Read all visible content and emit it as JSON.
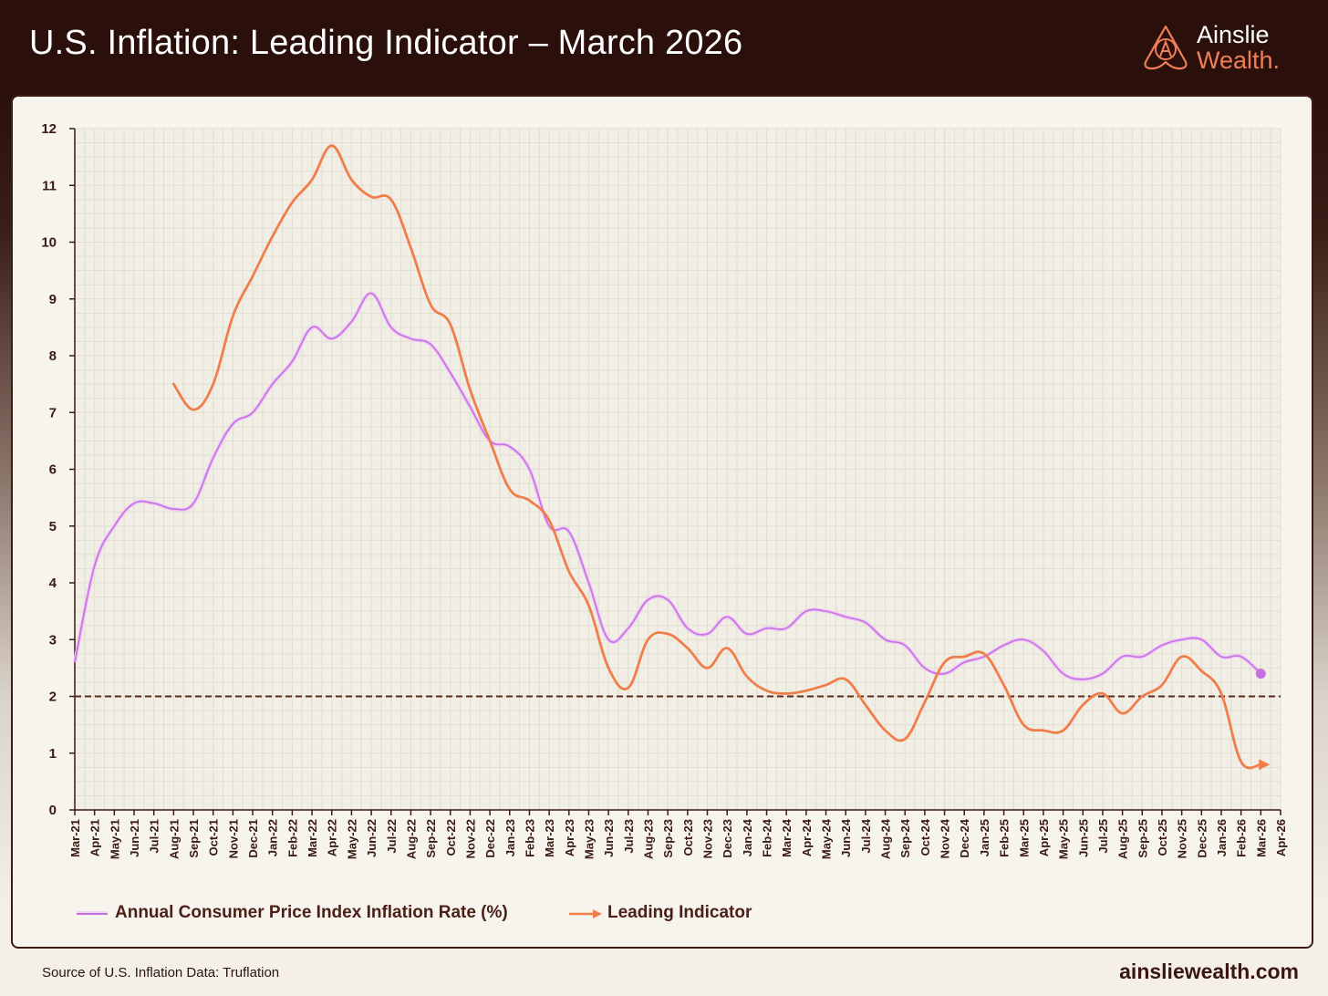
{
  "header": {
    "title": "U.S. Inflation: Leading Indicator – March 2026",
    "brand_name": "Ainslie",
    "brand_sub": "Wealth."
  },
  "footer": {
    "source": "Source of U.S. Inflation Data: Truflation",
    "url": "ainsliewealth.com"
  },
  "colors": {
    "cpi": "#c770e0",
    "leading": "#f07e4a",
    "target_line": "#5a2a1c",
    "grid": "#e2ddd2",
    "axis": "#3a1a12"
  },
  "chart_data": {
    "type": "line",
    "ylim": [
      0,
      12
    ],
    "yticks": [
      "0",
      "1",
      "2",
      "3",
      "4",
      "5",
      "6",
      "7",
      "8",
      "9",
      "10",
      "11",
      "12"
    ],
    "categories": [
      "Mar-21",
      "Apr-21",
      "May-21",
      "Jun-21",
      "Jul-21",
      "Aug-21",
      "Sep-21",
      "Oct-21",
      "Nov-21",
      "Dec-21",
      "Jan-22",
      "Feb-22",
      "Mar-22",
      "Apr-22",
      "May-22",
      "Jun-22",
      "Jul-22",
      "Aug-22",
      "Sep-22",
      "Oct-22",
      "Nov-22",
      "Dec-22",
      "Jan-23",
      "Feb-23",
      "Mar-23",
      "Apr-23",
      "May-23",
      "Jun-23",
      "Jul-23",
      "Aug-23",
      "Sep-23",
      "Oct-23",
      "Nov-23",
      "Dec-23",
      "Jan-24",
      "Feb-24",
      "Mar-24",
      "Apr-24",
      "May-24",
      "Jun-24",
      "Jul-24",
      "Aug-24",
      "Sep-24",
      "Oct-24",
      "Nov-24",
      "Dec-24",
      "Jan-25",
      "Feb-25",
      "Mar-25",
      "Apr-25",
      "May-25",
      "Jun-25",
      "Jul-25",
      "Aug-25",
      "Sep-25",
      "Oct-25",
      "Nov-25",
      "Dec-25",
      "Jan-26",
      "Feb-26",
      "Mar-26",
      "Apr-26"
    ],
    "reference_line": 2,
    "legend_placement": "bottom-left",
    "grid": true,
    "series": [
      {
        "name": "Annual Consumer Price Index Inflation Rate (%)",
        "values": [
          2.6,
          4.3,
          5.0,
          5.4,
          5.4,
          5.3,
          5.4,
          6.2,
          6.8,
          7.0,
          7.5,
          7.9,
          8.5,
          8.3,
          8.6,
          9.1,
          8.5,
          8.3,
          8.2,
          7.7,
          7.1,
          6.5,
          6.4,
          6.0,
          5.0,
          4.9,
          4.0,
          3.0,
          3.2,
          3.7,
          3.7,
          3.2,
          3.1,
          3.4,
          3.1,
          3.2,
          3.2,
          3.5,
          3.5,
          3.4,
          3.3,
          3.0,
          2.9,
          2.5,
          2.4,
          2.6,
          2.7,
          2.9,
          3.0,
          2.8,
          2.4,
          2.3,
          2.4,
          2.7,
          2.7,
          2.9,
          3.0,
          3.0,
          2.7,
          2.7,
          2.4,
          null
        ]
      },
      {
        "name": "Leading Indicator",
        "values": [
          null,
          null,
          null,
          null,
          null,
          7.5,
          7.05,
          7.5,
          8.7,
          9.4,
          10.1,
          10.7,
          11.1,
          11.7,
          11.1,
          10.8,
          10.75,
          9.9,
          8.9,
          8.55,
          7.4,
          6.5,
          5.65,
          5.45,
          5.1,
          4.2,
          3.6,
          2.5,
          2.15,
          3.0,
          3.1,
          2.85,
          2.5,
          2.85,
          2.35,
          2.1,
          2.05,
          2.1,
          2.2,
          2.3,
          1.85,
          1.4,
          1.25,
          1.9,
          2.6,
          2.7,
          2.75,
          2.2,
          1.5,
          1.4,
          1.4,
          1.85,
          2.05,
          1.7,
          2.0,
          2.2,
          2.7,
          2.45,
          2.05,
          0.85,
          0.8,
          null
        ]
      }
    ]
  }
}
